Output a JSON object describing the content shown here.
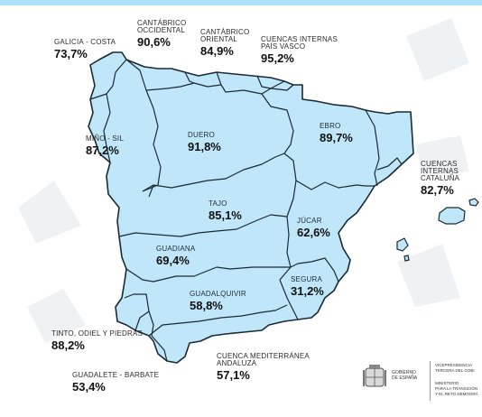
{
  "basins": [
    {
      "id": "galicia",
      "name": "GALICIA - COSTA",
      "pct": "73,7%"
    },
    {
      "id": "cantabrico-occ",
      "name_lines": [
        "CANTÁBRICO",
        "OCCIDENTAL"
      ],
      "pct": "90,6%"
    },
    {
      "id": "cantabrico-ori",
      "name_lines": [
        "CANTÁBRICO",
        "ORIENTAL"
      ],
      "pct": "84,9%"
    },
    {
      "id": "pais-vasco",
      "name_lines": [
        "CUENCAS INTERNAS",
        "PAÍS VASCO"
      ],
      "pct": "95,2%"
    },
    {
      "id": "mino-sil",
      "name": "MIÑO - SIL",
      "pct": "87,2%"
    },
    {
      "id": "duero",
      "name": "DUERO",
      "pct": "91,8%"
    },
    {
      "id": "ebro",
      "name": "EBRO",
      "pct": "89,7%"
    },
    {
      "id": "cataluna",
      "name_lines": [
        "CUENCAS INTERNAS",
        "CATALUÑA"
      ],
      "pct": "82,7%"
    },
    {
      "id": "tajo",
      "name": "TAJO",
      "pct": "85,1%"
    },
    {
      "id": "jucar",
      "name": "JÚCAR",
      "pct": "62,6%"
    },
    {
      "id": "guadiana",
      "name": "GUADIANA",
      "pct": "69,4%"
    },
    {
      "id": "segura",
      "name": "SEGURA",
      "pct": "31,2%"
    },
    {
      "id": "guadalquivir",
      "name": "GUADALQUIVIR",
      "pct": "58,8%"
    },
    {
      "id": "tinto",
      "name": "TINTO, ODIEL Y PIEDRAS",
      "pct": "88,2%"
    },
    {
      "id": "guadalete",
      "name": "GUADALETE - BARBATE",
      "pct": "53,4%"
    },
    {
      "id": "med-andaluza",
      "name_lines": [
        "CUENCA MEDITERRÁNEA",
        "ANDALUZA"
      ],
      "pct": "57,1%"
    }
  ],
  "footer": {
    "gobierno_lines": [
      "GOBIERNO",
      "DE ESPAÑA"
    ],
    "vicepresidencia_lines": [
      "VICEPRESIDENCIA",
      "TERCERA DEL GOBI"
    ],
    "ministerio_lines": [
      "MINISTERIO",
      "PARA LA TRANSICIÓN",
      "Y EL RETO DEMOGRÁ"
    ]
  },
  "colors": {
    "land": "#bfe6f9",
    "border": "#1b2a33",
    "topbar": "#aee3f7",
    "watermark": "#eef2f5"
  }
}
